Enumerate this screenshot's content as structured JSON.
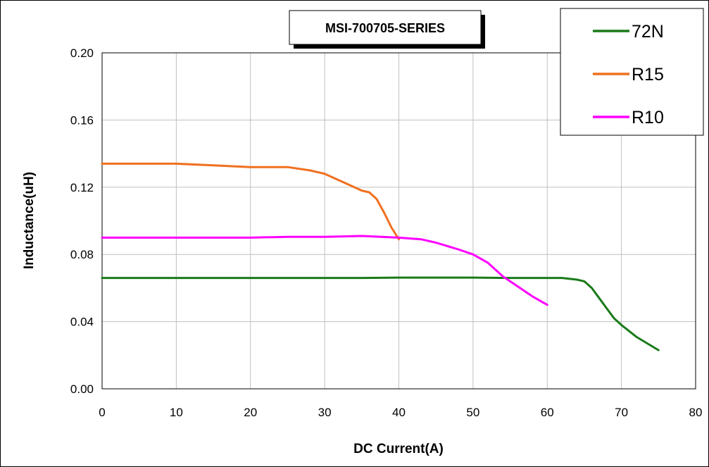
{
  "chart_data": {
    "type": "line",
    "title": "MSI-700705-SERIES",
    "xlabel": "DC Current(A)",
    "ylabel": "Inductance(uH)",
    "xlim": [
      0,
      80
    ],
    "ylim": [
      0,
      0.2
    ],
    "x_ticks": [
      "0",
      "10",
      "20",
      "30",
      "40",
      "50",
      "60",
      "70",
      "80"
    ],
    "y_ticks": [
      "0.00",
      "0.04",
      "0.08",
      "0.12",
      "0.16",
      "0.20"
    ],
    "grid": true,
    "legend_position": "top-right",
    "series": [
      {
        "name": "72N",
        "color": "#1a7a1a",
        "x": [
          0,
          10,
          20,
          30,
          35,
          40,
          45,
          50,
          55,
          60,
          62,
          64,
          65,
          66,
          67,
          68,
          69,
          70,
          72,
          75
        ],
        "y": [
          0.066,
          0.066,
          0.066,
          0.066,
          0.066,
          0.0662,
          0.0662,
          0.0662,
          0.066,
          0.066,
          0.066,
          0.065,
          0.064,
          0.06,
          0.054,
          0.048,
          0.042,
          0.038,
          0.031,
          0.023
        ]
      },
      {
        "name": "R15",
        "color": "#f07020",
        "x": [
          0,
          5,
          10,
          15,
          20,
          22,
          25,
          28,
          30,
          32,
          34,
          35,
          36,
          37,
          38,
          39,
          40
        ],
        "y": [
          0.134,
          0.134,
          0.134,
          0.133,
          0.132,
          0.132,
          0.132,
          0.13,
          0.128,
          0.124,
          0.12,
          0.118,
          0.117,
          0.113,
          0.105,
          0.096,
          0.089
        ]
      },
      {
        "name": "R10",
        "color": "#ff00ff",
        "x": [
          0,
          10,
          20,
          25,
          30,
          35,
          40,
          43,
          45,
          48,
          50,
          52,
          54,
          56,
          58,
          60
        ],
        "y": [
          0.09,
          0.09,
          0.09,
          0.0905,
          0.0905,
          0.091,
          0.09,
          0.089,
          0.087,
          0.083,
          0.08,
          0.075,
          0.067,
          0.061,
          0.055,
          0.05
        ]
      }
    ]
  }
}
